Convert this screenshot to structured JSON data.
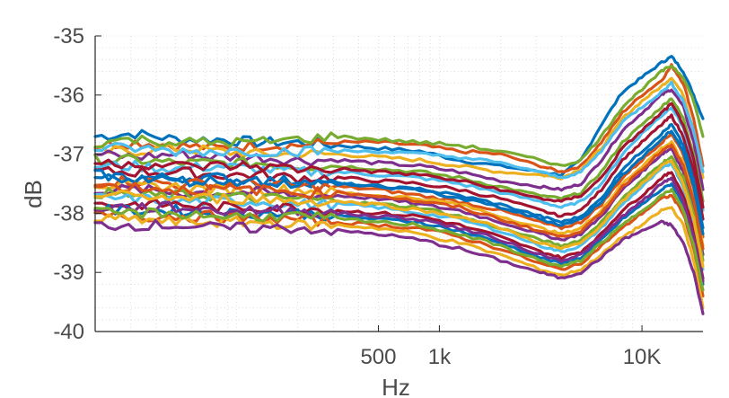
{
  "chart_data": {
    "type": "line",
    "xscale": "log",
    "xlim": [
      20,
      20000
    ],
    "ylim": [
      -40,
      -35
    ],
    "xlabel": "Hz",
    "ylabel": "dB",
    "title": "",
    "x_ticks": [
      {
        "value": 500,
        "label": "500"
      },
      {
        "value": 1000,
        "label": "1k"
      },
      {
        "value": 10000,
        "label": "10K"
      }
    ],
    "y_ticks": [
      {
        "value": -35,
        "label": "-35"
      },
      {
        "value": -36,
        "label": "-36"
      },
      {
        "value": -37,
        "label": "-37"
      },
      {
        "value": -38,
        "label": "-38"
      },
      {
        "value": -39,
        "label": "-39"
      },
      {
        "value": -40,
        "label": "-40"
      }
    ],
    "grid": "minor dotted",
    "colors": [
      "#0072BD",
      "#D95319",
      "#EDB120",
      "#7E2F8E",
      "#77AC30",
      "#4DBEEE",
      "#A2142F"
    ],
    "x": [
      20,
      31.5,
      50,
      80,
      125,
      200,
      315,
      500,
      800,
      1250,
      2000,
      3150,
      4000,
      5000,
      6300,
      8000,
      10000,
      12500,
      14000,
      16000,
      18000,
      20000
    ],
    "series": [
      {
        "values": [
          -36.7,
          -36.65,
          -36.75,
          -36.75,
          -36.8,
          -36.8,
          -36.85,
          -36.9,
          -36.95,
          -37.1,
          -37.2,
          -37.3,
          -37.35,
          -37.1,
          -36.5,
          -35.95,
          -35.7,
          -35.45,
          -35.35,
          -35.6,
          -36.0,
          -36.4
        ]
      },
      {
        "values": [
          -36.85,
          -36.8,
          -36.85,
          -36.9,
          -36.85,
          -36.85,
          -36.8,
          -36.8,
          -36.85,
          -36.95,
          -37.0,
          -37.2,
          -37.3,
          -37.2,
          -36.8,
          -36.3,
          -36.0,
          -35.75,
          -35.5,
          -35.8,
          -36.4,
          -37.2
        ]
      },
      {
        "values": [
          -36.95,
          -36.95,
          -36.9,
          -36.95,
          -37.0,
          -37.0,
          -37.0,
          -37.05,
          -37.1,
          -37.2,
          -37.3,
          -37.35,
          -37.4,
          -37.25,
          -36.9,
          -36.4,
          -36.1,
          -35.85,
          -35.7,
          -36.0,
          -36.6,
          -37.4
        ]
      },
      {
        "values": [
          -37.0,
          -37.05,
          -37.0,
          -37.05,
          -37.05,
          -37.1,
          -37.1,
          -37.15,
          -37.2,
          -37.3,
          -37.45,
          -37.55,
          -37.6,
          -37.5,
          -37.1,
          -36.6,
          -36.3,
          -36.0,
          -35.9,
          -36.2,
          -36.8,
          -37.6
        ]
      },
      {
        "values": [
          -37.1,
          -37.1,
          -37.15,
          -37.15,
          -37.15,
          -37.2,
          -37.2,
          -37.25,
          -37.3,
          -37.4,
          -37.55,
          -37.7,
          -37.75,
          -37.65,
          -37.3,
          -36.8,
          -36.5,
          -36.2,
          -36.05,
          -36.4,
          -37.0,
          -37.8
        ]
      },
      {
        "values": [
          -37.2,
          -37.2,
          -37.25,
          -37.2,
          -37.25,
          -37.3,
          -37.3,
          -37.35,
          -37.4,
          -37.5,
          -37.65,
          -37.8,
          -37.9,
          -37.8,
          -37.5,
          -37.0,
          -36.65,
          -36.35,
          -36.2,
          -36.55,
          -37.15,
          -37.95
        ]
      },
      {
        "values": [
          -37.3,
          -37.3,
          -37.3,
          -37.35,
          -37.35,
          -37.4,
          -37.4,
          -37.45,
          -37.5,
          -37.6,
          -37.75,
          -37.95,
          -38.05,
          -37.95,
          -37.6,
          -37.1,
          -36.8,
          -36.5,
          -36.35,
          -36.7,
          -37.3,
          -38.1
        ]
      },
      {
        "values": [
          -37.35,
          -37.4,
          -37.4,
          -37.4,
          -37.45,
          -37.45,
          -37.5,
          -37.55,
          -37.6,
          -37.7,
          -37.85,
          -38.05,
          -38.15,
          -38.05,
          -37.75,
          -37.25,
          -36.95,
          -36.65,
          -36.5,
          -36.85,
          -37.45,
          -38.25
        ]
      },
      {
        "values": [
          -37.45,
          -37.45,
          -37.5,
          -37.5,
          -37.5,
          -37.55,
          -37.55,
          -37.6,
          -37.7,
          -37.8,
          -37.95,
          -38.15,
          -38.25,
          -38.15,
          -37.85,
          -37.4,
          -37.1,
          -36.8,
          -36.65,
          -37.0,
          -37.6,
          -38.4
        ]
      },
      {
        "values": [
          -37.5,
          -37.55,
          -37.55,
          -37.6,
          -37.6,
          -37.6,
          -37.65,
          -37.7,
          -37.75,
          -37.85,
          -38.05,
          -38.25,
          -38.35,
          -38.25,
          -37.95,
          -37.5,
          -37.2,
          -36.9,
          -36.8,
          -37.15,
          -37.75,
          -38.55
        ]
      },
      {
        "values": [
          -37.6,
          -37.6,
          -37.65,
          -37.65,
          -37.65,
          -37.7,
          -37.7,
          -37.75,
          -37.85,
          -37.95,
          -38.15,
          -38.35,
          -38.45,
          -38.35,
          -38.05,
          -37.6,
          -37.3,
          -37.0,
          -36.9,
          -37.3,
          -37.9,
          -38.7
        ]
      },
      {
        "values": [
          -37.65,
          -37.7,
          -37.7,
          -37.7,
          -37.75,
          -37.75,
          -37.8,
          -37.85,
          -37.9,
          -38.05,
          -38.25,
          -38.45,
          -38.55,
          -38.45,
          -38.15,
          -37.75,
          -37.45,
          -37.15,
          -37.05,
          -37.4,
          -38.0,
          -38.8
        ]
      },
      {
        "values": [
          -37.75,
          -37.75,
          -37.8,
          -37.8,
          -37.8,
          -37.85,
          -37.85,
          -37.9,
          -38.0,
          -38.1,
          -38.3,
          -38.55,
          -38.65,
          -38.55,
          -38.25,
          -37.85,
          -37.55,
          -37.25,
          -37.15,
          -37.55,
          -38.15,
          -38.95
        ]
      },
      {
        "values": [
          -37.85,
          -37.85,
          -37.85,
          -37.9,
          -37.9,
          -37.9,
          -37.95,
          -38.0,
          -38.05,
          -38.2,
          -38.4,
          -38.65,
          -38.75,
          -38.65,
          -38.35,
          -37.95,
          -37.7,
          -37.4,
          -37.3,
          -37.7,
          -38.3,
          -39.1
        ]
      },
      {
        "values": [
          -37.95,
          -37.95,
          -37.95,
          -38.0,
          -38.0,
          -38.0,
          -38.05,
          -38.1,
          -38.15,
          -38.3,
          -38.5,
          -38.75,
          -38.85,
          -38.75,
          -38.45,
          -38.1,
          -37.85,
          -37.6,
          -37.5,
          -37.85,
          -38.45,
          -39.2
        ]
      },
      {
        "values": [
          -38.05,
          -38.05,
          -38.05,
          -38.05,
          -38.1,
          -38.1,
          -38.15,
          -38.2,
          -38.25,
          -38.4,
          -38.6,
          -38.85,
          -38.95,
          -38.85,
          -38.55,
          -38.25,
          -38.0,
          -37.75,
          -37.7,
          -38.0,
          -38.6,
          -39.4
        ]
      },
      {
        "values": [
          -38.1,
          -38.1,
          -38.15,
          -38.15,
          -38.15,
          -38.2,
          -38.2,
          -38.25,
          -38.35,
          -38.5,
          -38.7,
          -38.95,
          -39.05,
          -38.95,
          -38.7,
          -38.4,
          -38.2,
          -37.95,
          -37.9,
          -38.2,
          -38.8,
          -39.6
        ]
      },
      {
        "values": [
          -38.2,
          -38.2,
          -38.2,
          -38.25,
          -38.25,
          -38.25,
          -38.3,
          -38.35,
          -38.45,
          -38.6,
          -38.8,
          -39.0,
          -39.1,
          -39.0,
          -38.75,
          -38.45,
          -38.3,
          -38.15,
          -38.2,
          -38.5,
          -39.0,
          -39.7
        ]
      },
      {
        "values": [
          -36.8,
          -36.75,
          -36.8,
          -36.8,
          -36.8,
          -36.75,
          -36.7,
          -36.75,
          -36.8,
          -36.85,
          -36.95,
          -37.1,
          -37.2,
          -37.1,
          -36.7,
          -36.2,
          -35.9,
          -35.6,
          -35.5,
          -35.7,
          -36.1,
          -36.7
        ]
      },
      {
        "values": [
          -36.9,
          -36.9,
          -36.95,
          -36.95,
          -36.95,
          -36.95,
          -36.95,
          -36.95,
          -37.0,
          -37.05,
          -37.15,
          -37.3,
          -37.4,
          -37.3,
          -36.95,
          -36.45,
          -36.2,
          -35.95,
          -35.8,
          -36.1,
          -36.6,
          -37.3
        ]
      },
      {
        "values": [
          -37.15,
          -37.15,
          -37.2,
          -37.2,
          -37.2,
          -37.25,
          -37.25,
          -37.3,
          -37.35,
          -37.45,
          -37.6,
          -37.75,
          -37.8,
          -37.7,
          -37.4,
          -36.9,
          -36.6,
          -36.3,
          -36.15,
          -36.5,
          -37.1,
          -37.9
        ]
      },
      {
        "values": [
          -37.4,
          -37.4,
          -37.45,
          -37.45,
          -37.45,
          -37.5,
          -37.5,
          -37.55,
          -37.6,
          -37.75,
          -37.9,
          -38.1,
          -38.2,
          -38.1,
          -37.8,
          -37.35,
          -37.05,
          -36.75,
          -36.6,
          -36.95,
          -37.55,
          -38.35
        ]
      },
      {
        "values": [
          -37.55,
          -37.55,
          -37.6,
          -37.6,
          -37.6,
          -37.65,
          -37.65,
          -37.7,
          -37.8,
          -37.9,
          -38.1,
          -38.3,
          -38.4,
          -38.3,
          -38.0,
          -37.55,
          -37.25,
          -36.95,
          -36.85,
          -37.2,
          -37.8,
          -38.6
        ]
      },
      {
        "values": [
          -37.7,
          -37.7,
          -37.75,
          -37.75,
          -37.75,
          -37.8,
          -37.8,
          -37.85,
          -37.95,
          -38.05,
          -38.25,
          -38.5,
          -38.6,
          -38.5,
          -38.2,
          -37.8,
          -37.5,
          -37.2,
          -37.1,
          -37.5,
          -38.1,
          -38.9
        ]
      },
      {
        "values": [
          -37.9,
          -37.9,
          -37.9,
          -37.95,
          -37.95,
          -37.95,
          -38.0,
          -38.05,
          -38.1,
          -38.25,
          -38.45,
          -38.7,
          -38.8,
          -38.7,
          -38.4,
          -38.05,
          -37.8,
          -37.5,
          -37.4,
          -37.8,
          -38.4,
          -39.15
        ]
      },
      {
        "values": [
          -38.0,
          -38.0,
          -38.0,
          -38.05,
          -38.05,
          -38.05,
          -38.1,
          -38.15,
          -38.2,
          -38.35,
          -38.55,
          -38.8,
          -38.9,
          -38.8,
          -38.5,
          -38.2,
          -37.95,
          -37.7,
          -37.6,
          -37.95,
          -38.55,
          -39.3
        ]
      }
    ]
  }
}
